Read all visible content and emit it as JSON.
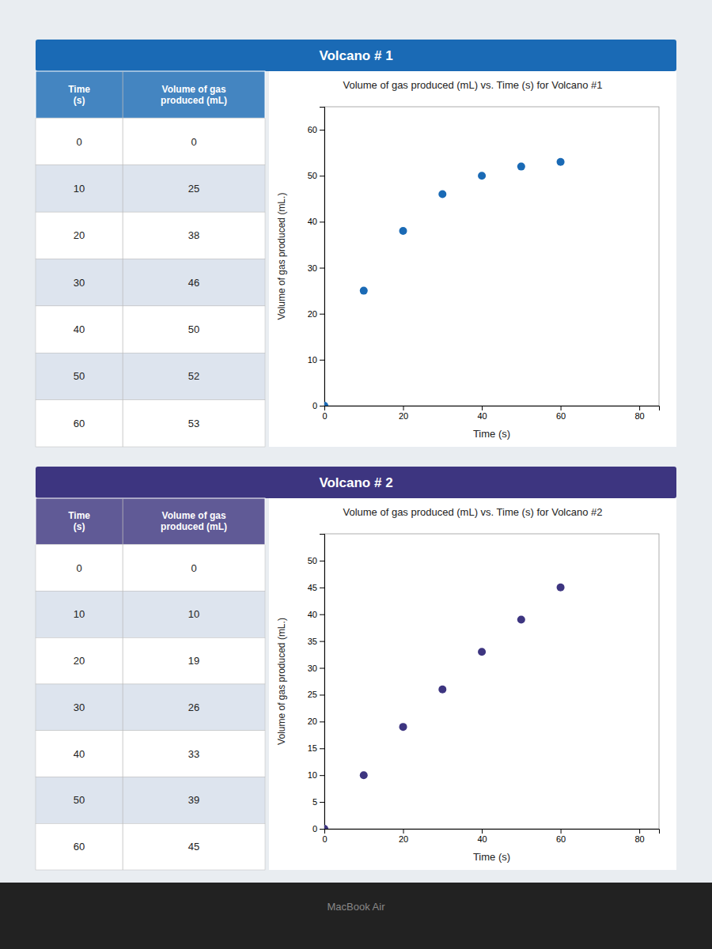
{
  "chart_data": [
    {
      "type": "scatter",
      "title": "Volume of gas produced (mL) vs. Time (s) for Volcano #1",
      "subtitle": "Volcano # 1",
      "x": [
        0,
        10,
        20,
        30,
        40,
        50,
        60
      ],
      "values": [
        0,
        25,
        38,
        46,
        50,
        52,
        53
      ],
      "color": "#1a6ab5",
      "xlabel": "Time (s)",
      "ylabel": "Volume of gas produced (mL.)",
      "xlim": [
        0,
        85
      ],
      "ylim": [
        0,
        65
      ],
      "xticks": [
        0,
        20,
        40,
        60,
        80
      ],
      "yticks": [
        0,
        10,
        20,
        30,
        40,
        50,
        60
      ],
      "grid": false,
      "annotations": [
        "Time\n(s)",
        "Volume of gas\nproduced (mL)"
      ]
    },
    {
      "type": "scatter",
      "title": "Volume of gas produced (mL) vs. Time (s) for Volcano #2",
      "subtitle": "Volcano # 2",
      "x": [
        0,
        10,
        20,
        30,
        40,
        50,
        60
      ],
      "values": [
        0,
        10,
        19,
        26,
        33,
        39,
        45
      ],
      "color": "#3d3580",
      "xlabel": "Time (s)",
      "ylabel": "Volume of gas produced (mL.)",
      "xlim": [
        0,
        85
      ],
      "ylim": [
        0,
        55
      ],
      "xticks": [
        0,
        20,
        40,
        60,
        80
      ],
      "yticks": [
        0,
        5,
        10,
        15,
        20,
        25,
        30,
        35,
        40,
        45,
        50
      ],
      "grid": false,
      "annotations": [
        "Time\n(s)",
        "Volume of gas\nproduced (mL)"
      ]
    }
  ],
  "annotations": [
    "MacBook Air"
  ]
}
